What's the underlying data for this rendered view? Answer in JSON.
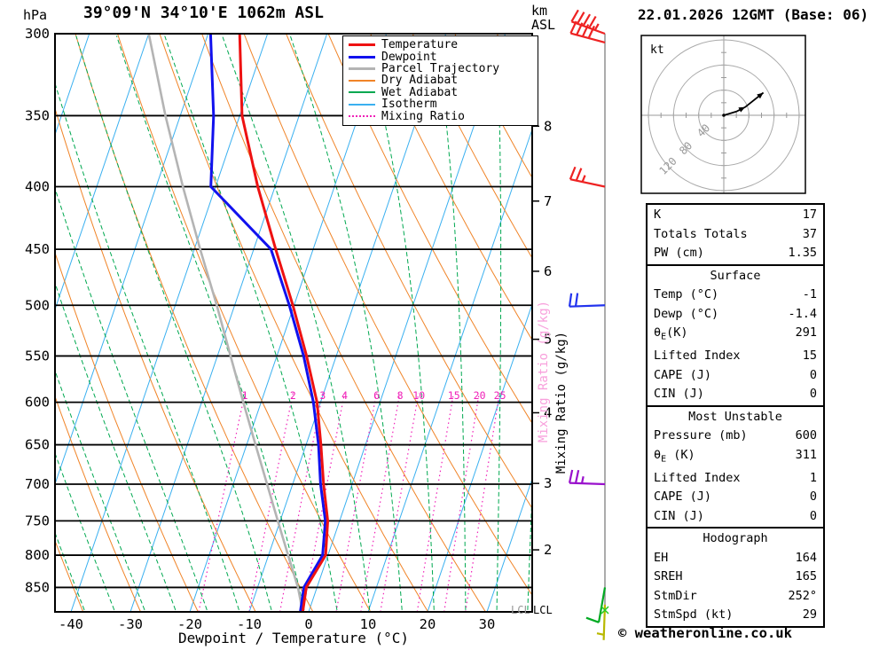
{
  "header": {
    "pressure_unit": "hPa",
    "title": "39°09'N 34°10'E 1062m ASL",
    "altitude_unit_line1": "km",
    "altitude_unit_line2": "ASL",
    "date_label": "22.01.2026 12GMT (Base: 06)"
  },
  "axes": {
    "xlabel": "Dewpoint / Temperature (°C)",
    "mixing_ratio_label": "Mixing Ratio (g/kg)",
    "lcl_label": "LCL",
    "pressure_ticks": [
      300,
      350,
      400,
      450,
      500,
      550,
      600,
      650,
      700,
      750,
      800,
      850
    ],
    "temp_ticks": [
      -40,
      -30,
      -20,
      -10,
      0,
      10,
      20,
      30
    ],
    "km_ticks": [
      {
        "km": 8,
        "p": 357
      },
      {
        "km": 7,
        "p": 411
      },
      {
        "km": 6,
        "p": 469
      },
      {
        "km": 5,
        "p": 533
      },
      {
        "km": 4,
        "p": 612
      },
      {
        "km": 3,
        "p": 699
      },
      {
        "km": 2,
        "p": 792
      }
    ]
  },
  "legend": {
    "items": [
      {
        "label": "Temperature",
        "color": "#ee1111",
        "style": "solid",
        "width": 3
      },
      {
        "label": "Dewpoint",
        "color": "#1111ee",
        "style": "solid",
        "width": 3
      },
      {
        "label": "Parcel Trajectory",
        "color": "#b4b4b4",
        "style": "solid",
        "width": 3
      },
      {
        "label": "Dry Adiabat",
        "color": "#f08428",
        "style": "solid",
        "width": 2
      },
      {
        "label": "Wet Adiabat",
        "color": "#00a850",
        "style": "solid",
        "width": 2
      },
      {
        "label": "Isotherm",
        "color": "#3ab0f0",
        "style": "solid",
        "width": 2
      },
      {
        "label": "Mixing Ratio",
        "color": "#f020b8",
        "style": "dotted",
        "width": 2
      }
    ]
  },
  "chart_data": {
    "type": "line",
    "subtype": "skewt-logp-sounding",
    "pressure_range_hpa": [
      300,
      890
    ],
    "temp_axis_range_c": [
      -45,
      35
    ],
    "mixing_ratio_lines_gkg": [
      1,
      2,
      3,
      4,
      6,
      8,
      10,
      15,
      20,
      25
    ],
    "series": [
      {
        "name": "Temperature",
        "color": "#ee1111",
        "points_p_t": [
          [
            890,
            -1
          ],
          [
            850,
            -1.8
          ],
          [
            800,
            -0.4
          ],
          [
            750,
            -2.0
          ],
          [
            700,
            -4.8
          ],
          [
            650,
            -7.5
          ],
          [
            600,
            -10.6
          ],
          [
            550,
            -15.0
          ],
          [
            500,
            -20.2
          ],
          [
            450,
            -26.3
          ],
          [
            400,
            -32.9
          ],
          [
            350,
            -39.6
          ],
          [
            300,
            -44.7
          ]
        ]
      },
      {
        "name": "Dewpoint",
        "color": "#1111ee",
        "points_p_t": [
          [
            890,
            -1.4
          ],
          [
            850,
            -2.2
          ],
          [
            800,
            -0.9
          ],
          [
            750,
            -2.4
          ],
          [
            700,
            -5.3
          ],
          [
            650,
            -7.9
          ],
          [
            600,
            -11.2
          ],
          [
            550,
            -15.5
          ],
          [
            500,
            -20.8
          ],
          [
            450,
            -27.1
          ],
          [
            400,
            -40.8
          ],
          [
            350,
            -44.4
          ],
          [
            300,
            -49.6
          ]
        ]
      },
      {
        "name": "Parcel Trajectory",
        "color": "#b4b4b4",
        "points_p_t": [
          [
            890,
            -1
          ],
          [
            850,
            -3.2
          ],
          [
            800,
            -6.7
          ],
          [
            750,
            -10.4
          ],
          [
            700,
            -14.3
          ],
          [
            650,
            -18.5
          ],
          [
            600,
            -23.0
          ],
          [
            550,
            -27.8
          ],
          [
            500,
            -33.0
          ],
          [
            450,
            -39.0
          ],
          [
            400,
            -45.5
          ],
          [
            350,
            -52.5
          ],
          [
            300,
            -60.0
          ]
        ]
      }
    ],
    "wind_barbs": [
      {
        "p": 300,
        "dir_deg": 290,
        "speed_kt": 45,
        "color": "#ee2222"
      },
      {
        "p": 305,
        "dir_deg": 285,
        "speed_kt": 40,
        "color": "#ee2222"
      },
      {
        "p": 400,
        "dir_deg": 282,
        "speed_kt": 25,
        "color": "#ee2222"
      },
      {
        "p": 500,
        "dir_deg": 268,
        "speed_kt": 20,
        "color": "#2233ee"
      },
      {
        "p": 700,
        "dir_deg": 272,
        "speed_kt": 25,
        "color": "#9911cc"
      },
      {
        "p": 850,
        "dir_deg": 190,
        "speed_kt": 10,
        "color": "#00aa22"
      },
      {
        "p": 878,
        "dir_deg": 182,
        "speed_kt": 5,
        "color": "#b8b800"
      }
    ],
    "hodograph": {
      "unit": "kt",
      "rings_kt": [
        40,
        80,
        120
      ],
      "trace_kt_uv": [
        [
          0,
          0
        ],
        [
          20,
          6
        ],
        [
          34,
          13
        ],
        [
          63,
          36
        ]
      ]
    },
    "grid": {
      "isotherm_step_c": 10,
      "dry_adiabat_step_k": 10,
      "wet_adiabat_step_c": 5,
      "colors": {
        "isotherm": "#3ab0f0",
        "dry_adiabat": "#f08428",
        "wet_adiabat": "#00a850",
        "mixing_ratio": "#f020b8",
        "pressure_line": "#000000"
      }
    }
  },
  "stats": {
    "sections": [
      {
        "header": null,
        "rows": [
          [
            "K",
            "17"
          ],
          [
            "Totals Totals",
            "37"
          ],
          [
            "PW (cm)",
            "1.35"
          ]
        ]
      },
      {
        "header": "Surface",
        "rows": [
          [
            "Temp (°C)",
            "-1"
          ],
          [
            "Dewp (°C)",
            "-1.4"
          ],
          [
            "θE(K)",
            "291"
          ],
          [
            "Lifted Index",
            "15"
          ],
          [
            "CAPE (J)",
            "0"
          ],
          [
            "CIN (J)",
            "0"
          ]
        ]
      },
      {
        "header": "Most Unstable",
        "rows": [
          [
            "Pressure (mb)",
            "600"
          ],
          [
            "θE (K)",
            "311"
          ],
          [
            "Lifted Index",
            "1"
          ],
          [
            "CAPE (J)",
            "0"
          ],
          [
            "CIN (J)",
            "0"
          ]
        ]
      },
      {
        "header": "Hodograph",
        "rows": [
          [
            "EH",
            "164"
          ],
          [
            "SREH",
            "165"
          ],
          [
            "StmDir",
            "252°"
          ],
          [
            "StmSpd (kt)",
            "29"
          ]
        ]
      }
    ]
  },
  "footer": {
    "copyright": "© weatheronline.co.uk"
  }
}
